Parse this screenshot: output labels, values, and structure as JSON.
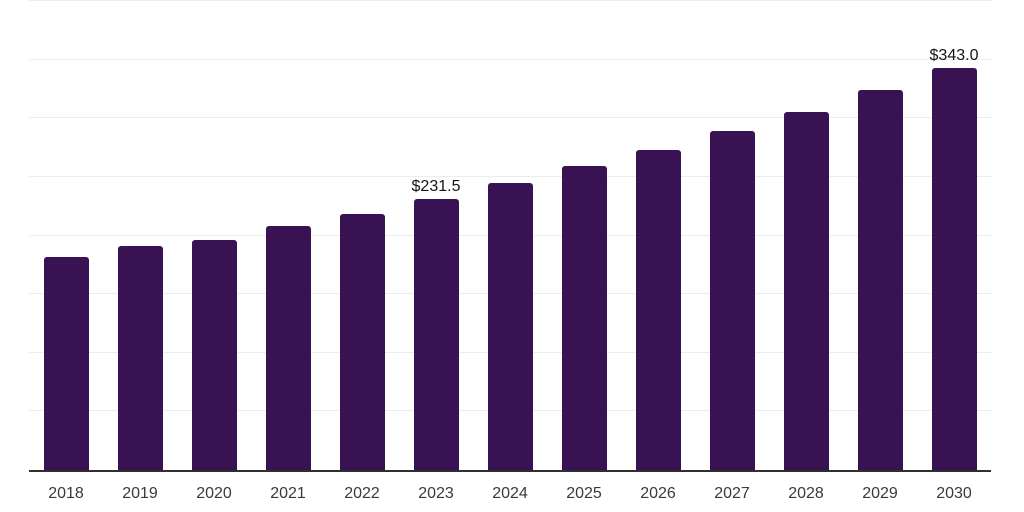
{
  "chart_data": {
    "type": "bar",
    "title": "",
    "xlabel": "",
    "ylabel": "",
    "categories": [
      "2018",
      "2019",
      "2020",
      "2021",
      "2022",
      "2023",
      "2024",
      "2025",
      "2026",
      "2027",
      "2028",
      "2029",
      "2030"
    ],
    "values": [
      181.5,
      191.0,
      196.5,
      208.0,
      218.5,
      231.5,
      244.5,
      259.0,
      273.0,
      289.0,
      305.5,
      324.0,
      343.0
    ],
    "bar_labels": [
      "",
      "",
      "",
      "",
      "",
      "$231.5",
      "",
      "",
      "",
      "",
      "",
      "",
      "$343.0"
    ],
    "ylim": [
      0,
      400
    ],
    "grid_interval": 50,
    "grid": "horizontal",
    "legend": "none",
    "y_tick_labels_visible": false
  },
  "colors": {
    "bar": "#381253",
    "gridline": "#ececec",
    "axis_line": "#2f2f2f",
    "tick_label": "#3a3a3a",
    "value_label": "#141414",
    "background": "#ffffff"
  }
}
